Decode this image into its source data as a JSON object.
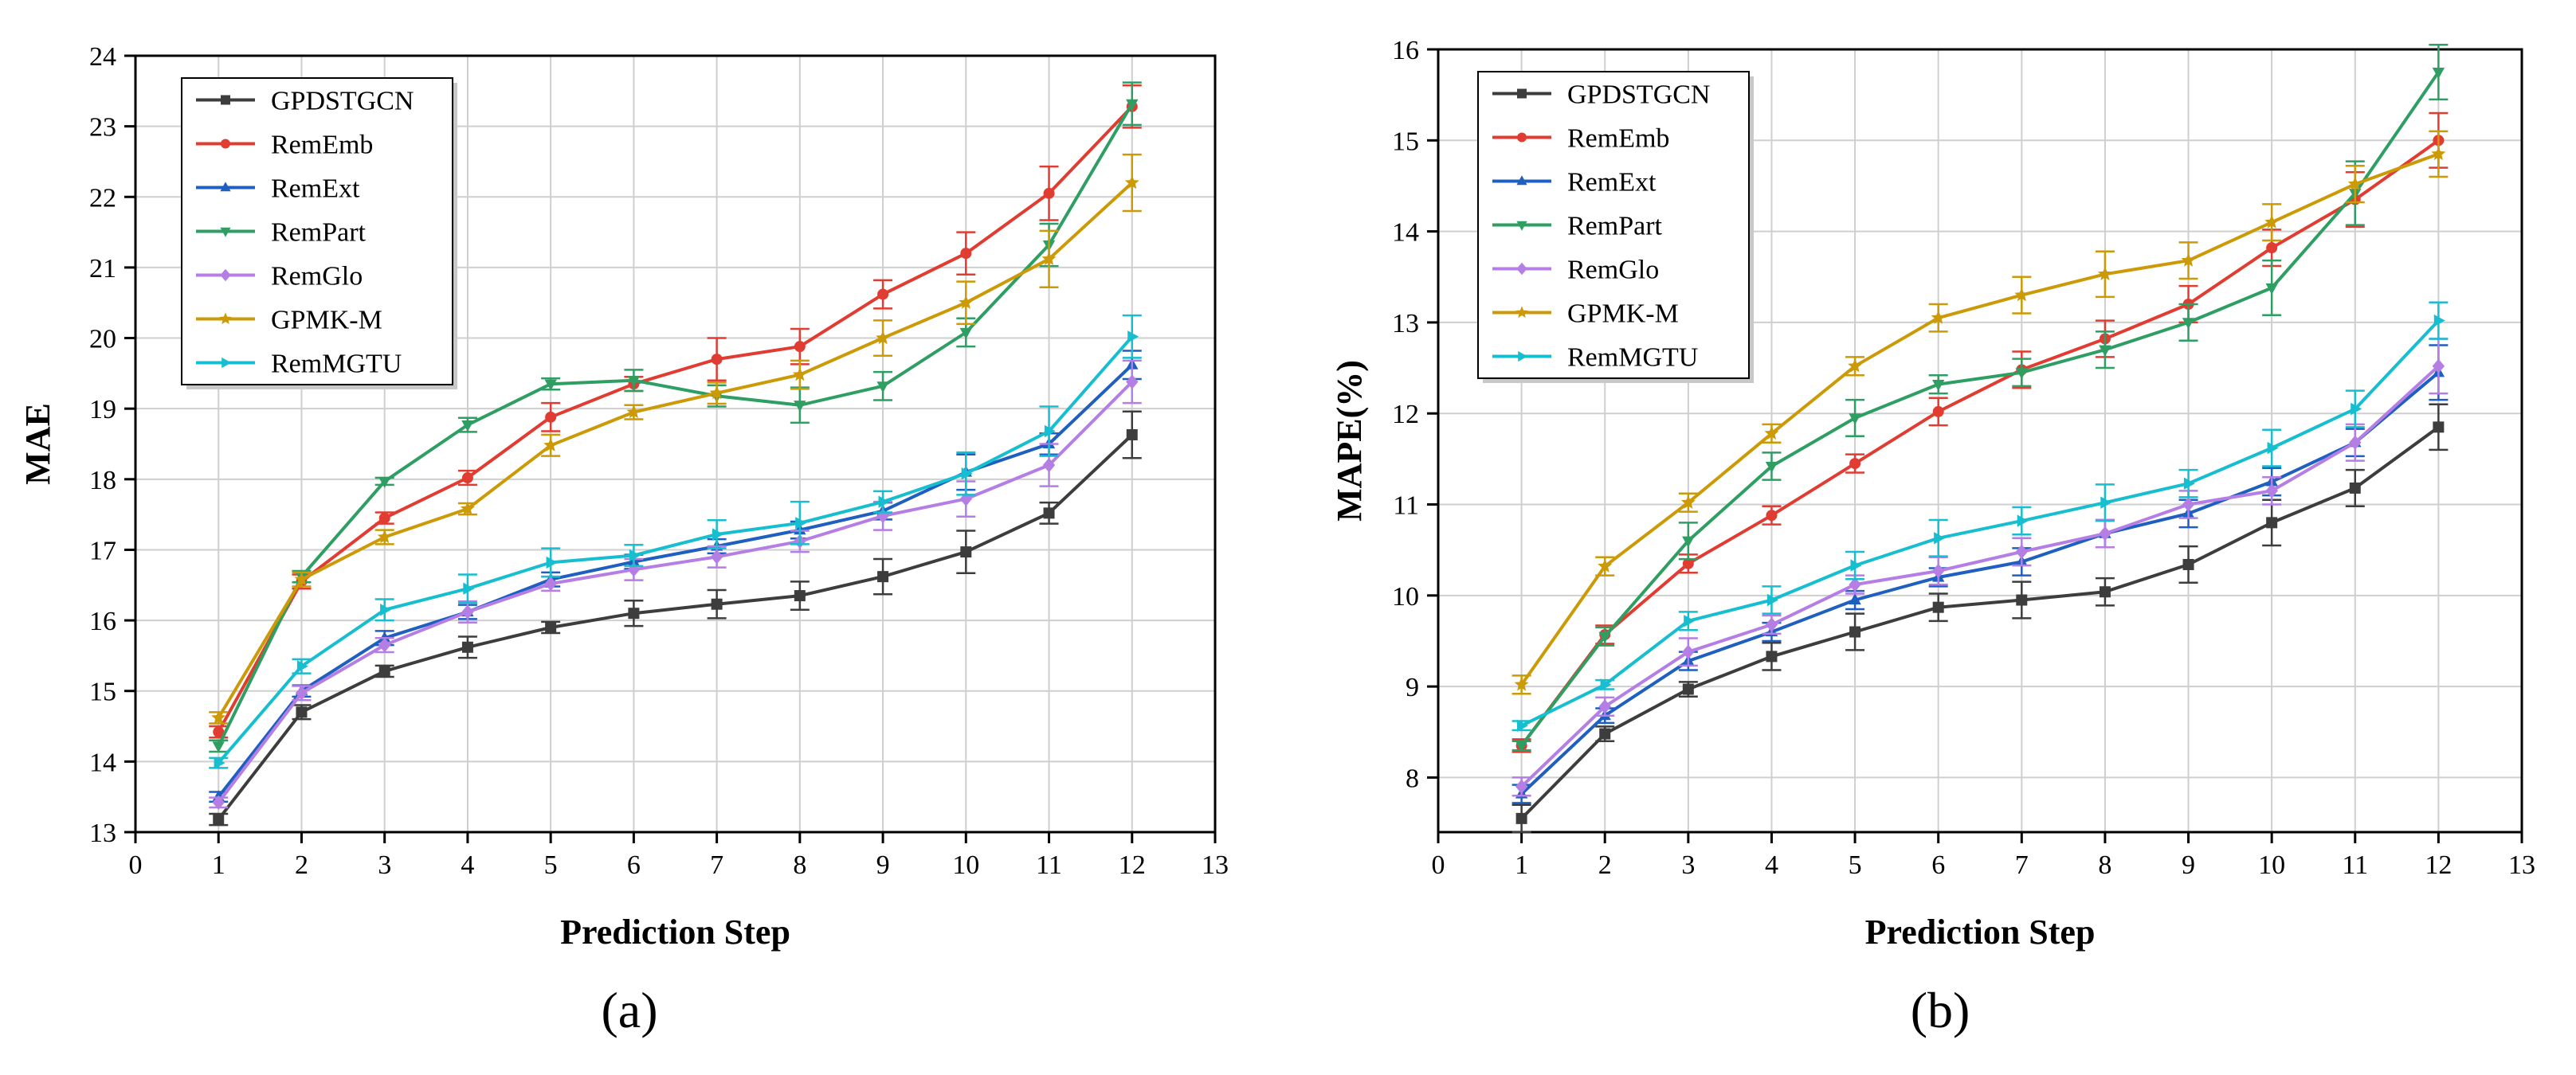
{
  "chart_data": [
    {
      "type": "line",
      "panel_label": "(a)",
      "xlabel": "Prediction Step",
      "ylabel": "MAE",
      "xlim": [
        0,
        13
      ],
      "ylim": [
        13,
        24
      ],
      "xticks": [
        "0",
        "1",
        "2",
        "3",
        "4",
        "5",
        "6",
        "7",
        "8",
        "9",
        "10",
        "11",
        "12",
        "13"
      ],
      "yticks": [
        "13",
        "14",
        "15",
        "16",
        "17",
        "18",
        "19",
        "20",
        "21",
        "22",
        "23",
        "24"
      ],
      "grid": true,
      "legend_position": "top-left",
      "x": [
        1,
        2,
        3,
        4,
        5,
        6,
        7,
        8,
        9,
        10,
        11,
        12
      ],
      "series": [
        {
          "name": "GPDSTGCN",
          "color": "#3d3d3d",
          "marker": "square",
          "values": [
            13.18,
            14.7,
            15.28,
            15.62,
            15.9,
            16.1,
            16.23,
            16.35,
            16.62,
            16.97,
            17.52,
            18.63
          ],
          "errors": [
            0.08,
            0.1,
            0.08,
            0.15,
            0.08,
            0.18,
            0.2,
            0.2,
            0.25,
            0.3,
            0.15,
            0.33
          ]
        },
        {
          "name": "RemEmb",
          "color": "#e03c31",
          "marker": "circle",
          "values": [
            14.42,
            16.55,
            17.45,
            18.02,
            18.88,
            19.35,
            19.7,
            19.88,
            20.62,
            21.2,
            22.05,
            23.28
          ],
          "errors": [
            0.08,
            0.1,
            0.08,
            0.1,
            0.2,
            0.1,
            0.3,
            0.25,
            0.2,
            0.3,
            0.38,
            0.3
          ]
        },
        {
          "name": "RemExt",
          "color": "#1f5fbf",
          "marker": "triangle-up",
          "values": [
            13.5,
            15.0,
            15.75,
            16.12,
            16.58,
            16.83,
            17.05,
            17.28,
            17.55,
            18.1,
            18.5,
            19.62
          ],
          "errors": [
            0.07,
            0.08,
            0.1,
            0.1,
            0.1,
            0.1,
            0.1,
            0.12,
            0.12,
            0.25,
            0.15,
            0.2
          ]
        },
        {
          "name": "RemPart",
          "color": "#2e9e63",
          "marker": "triangle-down",
          "values": [
            14.22,
            16.62,
            17.97,
            18.77,
            19.35,
            19.4,
            19.18,
            19.05,
            19.32,
            20.08,
            21.32,
            23.32
          ],
          "errors": [
            0.08,
            0.08,
            0.05,
            0.1,
            0.08,
            0.15,
            0.15,
            0.25,
            0.2,
            0.2,
            0.3,
            0.3
          ]
        },
        {
          "name": "RemGlo",
          "color": "#b57ee5",
          "marker": "diamond",
          "values": [
            13.42,
            14.97,
            15.65,
            16.12,
            16.52,
            16.72,
            16.9,
            17.12,
            17.48,
            17.72,
            18.2,
            19.38
          ],
          "errors": [
            0.07,
            0.1,
            0.1,
            0.15,
            0.1,
            0.15,
            0.15,
            0.15,
            0.2,
            0.25,
            0.3,
            0.3
          ]
        },
        {
          "name": "GPMK-M",
          "color": "#cc9a06",
          "marker": "star",
          "values": [
            14.62,
            16.58,
            17.18,
            17.58,
            18.48,
            18.95,
            19.22,
            19.48,
            20.0,
            20.5,
            21.12,
            22.2
          ],
          "errors": [
            0.08,
            0.1,
            0.1,
            0.08,
            0.15,
            0.1,
            0.15,
            0.2,
            0.25,
            0.3,
            0.4,
            0.4
          ]
        },
        {
          "name": "RemMGTU",
          "color": "#17becf",
          "marker": "triangle-right",
          "values": [
            13.98,
            15.35,
            16.15,
            16.45,
            16.82,
            16.92,
            17.22,
            17.38,
            17.68,
            18.08,
            18.68,
            20.02
          ],
          "errors": [
            0.07,
            0.1,
            0.15,
            0.2,
            0.2,
            0.15,
            0.2,
            0.3,
            0.15,
            0.3,
            0.35,
            0.3
          ]
        }
      ]
    },
    {
      "type": "line",
      "panel_label": "(b)",
      "xlabel": "Prediction Step",
      "ylabel": "MAPE(%)",
      "xlim": [
        0,
        13
      ],
      "ylim": [
        7.4,
        16
      ],
      "xticks": [
        "0",
        "1",
        "2",
        "3",
        "4",
        "5",
        "6",
        "7",
        "8",
        "9",
        "10",
        "11",
        "12",
        "13"
      ],
      "yticks": [
        "8",
        "9",
        "10",
        "11",
        "12",
        "13",
        "14",
        "15",
        "16"
      ],
      "grid": true,
      "legend_position": "top-left",
      "x": [
        1,
        2,
        3,
        4,
        5,
        6,
        7,
        8,
        9,
        10,
        11,
        12
      ],
      "series": [
        {
          "name": "GPDSTGCN",
          "color": "#3d3d3d",
          "marker": "square",
          "values": [
            7.55,
            8.48,
            8.97,
            9.33,
            9.6,
            9.87,
            9.95,
            10.04,
            10.34,
            10.8,
            11.18,
            11.85
          ],
          "errors": [
            0.15,
            0.08,
            0.08,
            0.15,
            0.2,
            0.15,
            0.2,
            0.15,
            0.2,
            0.25,
            0.2,
            0.25
          ]
        },
        {
          "name": "RemEmb",
          "color": "#e03c31",
          "marker": "circle",
          "values": [
            8.35,
            9.57,
            10.35,
            10.88,
            11.45,
            12.02,
            12.48,
            12.82,
            13.2,
            13.82,
            14.35,
            15.0
          ],
          "errors": [
            0.07,
            0.1,
            0.1,
            0.1,
            0.1,
            0.15,
            0.2,
            0.2,
            0.2,
            0.2,
            0.3,
            0.3
          ]
        },
        {
          "name": "RemExt",
          "color": "#1f5fbf",
          "marker": "triangle-up",
          "values": [
            7.82,
            8.68,
            9.28,
            9.6,
            9.95,
            10.2,
            10.37,
            10.68,
            10.9,
            11.25,
            11.68,
            12.45
          ],
          "errors": [
            0.1,
            0.08,
            0.1,
            0.1,
            0.1,
            0.1,
            0.15,
            0.15,
            0.15,
            0.15,
            0.15,
            0.3
          ]
        },
        {
          "name": "RemPart",
          "color": "#2e9e63",
          "marker": "triangle-down",
          "values": [
            8.35,
            9.55,
            10.6,
            11.42,
            11.95,
            12.32,
            12.45,
            12.7,
            13.0,
            13.38,
            14.42,
            15.75
          ],
          "errors": [
            0.05,
            0.1,
            0.2,
            0.15,
            0.2,
            0.1,
            0.15,
            0.2,
            0.2,
            0.3,
            0.35,
            0.3
          ]
        },
        {
          "name": "RemGlo",
          "color": "#b57ee5",
          "marker": "diamond",
          "values": [
            7.9,
            8.78,
            9.38,
            9.68,
            10.12,
            10.27,
            10.48,
            10.68,
            11.0,
            11.15,
            11.68,
            12.52
          ],
          "errors": [
            0.1,
            0.1,
            0.15,
            0.1,
            0.1,
            0.15,
            0.15,
            0.15,
            0.15,
            0.15,
            0.2,
            0.3
          ]
        },
        {
          "name": "GPMK-M",
          "color": "#cc9a06",
          "marker": "star",
          "values": [
            9.02,
            10.32,
            11.02,
            11.78,
            12.52,
            13.05,
            13.3,
            13.53,
            13.68,
            14.1,
            14.52,
            14.85
          ],
          "errors": [
            0.1,
            0.1,
            0.1,
            0.1,
            0.1,
            0.15,
            0.2,
            0.25,
            0.2,
            0.2,
            0.2,
            0.25
          ]
        },
        {
          "name": "RemMGTU",
          "color": "#17becf",
          "marker": "triangle-right",
          "values": [
            8.57,
            9.02,
            9.72,
            9.95,
            10.33,
            10.63,
            10.82,
            11.02,
            11.23,
            11.62,
            12.05,
            13.02
          ],
          "errors": [
            0.05,
            0.05,
            0.1,
            0.15,
            0.15,
            0.2,
            0.15,
            0.2,
            0.15,
            0.2,
            0.2,
            0.2
          ]
        }
      ]
    }
  ]
}
